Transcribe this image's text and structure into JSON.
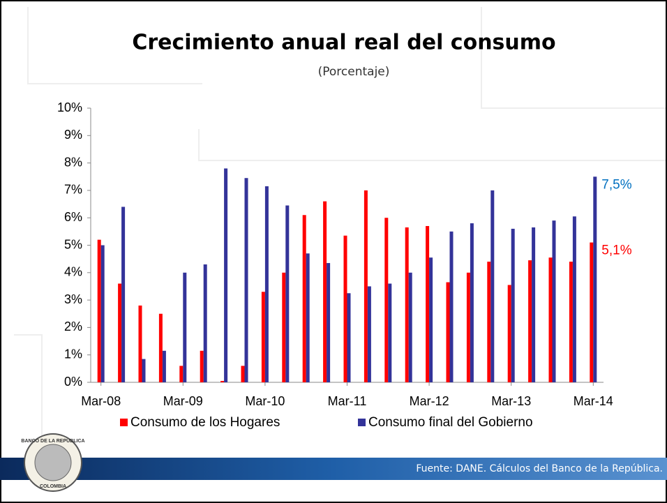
{
  "chart_data": {
    "type": "bar",
    "title": "Crecimiento anual real del consumo",
    "subtitle": "(Porcentaje)",
    "categories": [
      "Mar-08",
      null,
      null,
      null,
      "Mar-09",
      null,
      null,
      null,
      "Mar-10",
      null,
      null,
      null,
      "Mar-11",
      null,
      null,
      null,
      "Mar-12",
      null,
      null,
      null,
      "Mar-13",
      null,
      null,
      null,
      "Mar-14"
    ],
    "series": [
      {
        "name": "Consumo de los Hogares",
        "color": "#ff0000",
        "value_label_color": "#ff0000",
        "values": [
          5.2,
          3.6,
          2.8,
          2.5,
          0.6,
          1.15,
          0.05,
          0.6,
          3.3,
          4.0,
          6.1,
          6.6,
          5.35,
          7.0,
          6.0,
          5.65,
          5.7,
          3.65,
          4.0,
          4.4,
          3.55,
          4.45,
          4.55,
          4.4,
          5.1
        ],
        "value_labels": [
          null,
          null,
          null,
          null,
          null,
          null,
          null,
          null,
          null,
          null,
          null,
          null,
          null,
          null,
          null,
          null,
          null,
          null,
          null,
          null,
          null,
          null,
          null,
          null,
          "5,1%"
        ]
      },
      {
        "name": "Consumo final del Gobierno",
        "color": "#333399",
        "value_label_color": "#0070c0",
        "values": [
          5.0,
          6.4,
          0.85,
          1.15,
          4.0,
          4.3,
          7.8,
          7.45,
          7.15,
          6.45,
          4.7,
          4.35,
          3.25,
          3.5,
          3.6,
          4.0,
          4.55,
          5.5,
          5.8,
          7.0,
          5.6,
          5.65,
          5.9,
          6.05,
          7.5
        ],
        "value_labels": [
          null,
          null,
          null,
          null,
          null,
          null,
          null,
          null,
          null,
          null,
          null,
          null,
          null,
          null,
          null,
          null,
          null,
          null,
          null,
          null,
          null,
          null,
          null,
          null,
          "7,5%"
        ]
      }
    ],
    "ylim": [
      0,
      10
    ],
    "yticks": [
      {
        "value": 0,
        "label": "0%"
      },
      {
        "value": 1,
        "label": "1%"
      },
      {
        "value": 2,
        "label": "2%"
      },
      {
        "value": 3,
        "label": "3%"
      },
      {
        "value": 4,
        "label": "4%"
      },
      {
        "value": 5,
        "label": "5%"
      },
      {
        "value": 6,
        "label": "6%"
      },
      {
        "value": 7,
        "label": "7%"
      },
      {
        "value": 8,
        "label": "8%"
      },
      {
        "value": 9,
        "label": "9%"
      },
      {
        "value": 10,
        "label": "10%"
      }
    ],
    "grid": false,
    "legend": "bottom"
  },
  "footer": {
    "source": "Fuente: DANE. Cálculos del Banco de la República.",
    "logo_top": "BANCO DE LA REPUBLICA",
    "logo_bottom": "COLOMBIA"
  }
}
